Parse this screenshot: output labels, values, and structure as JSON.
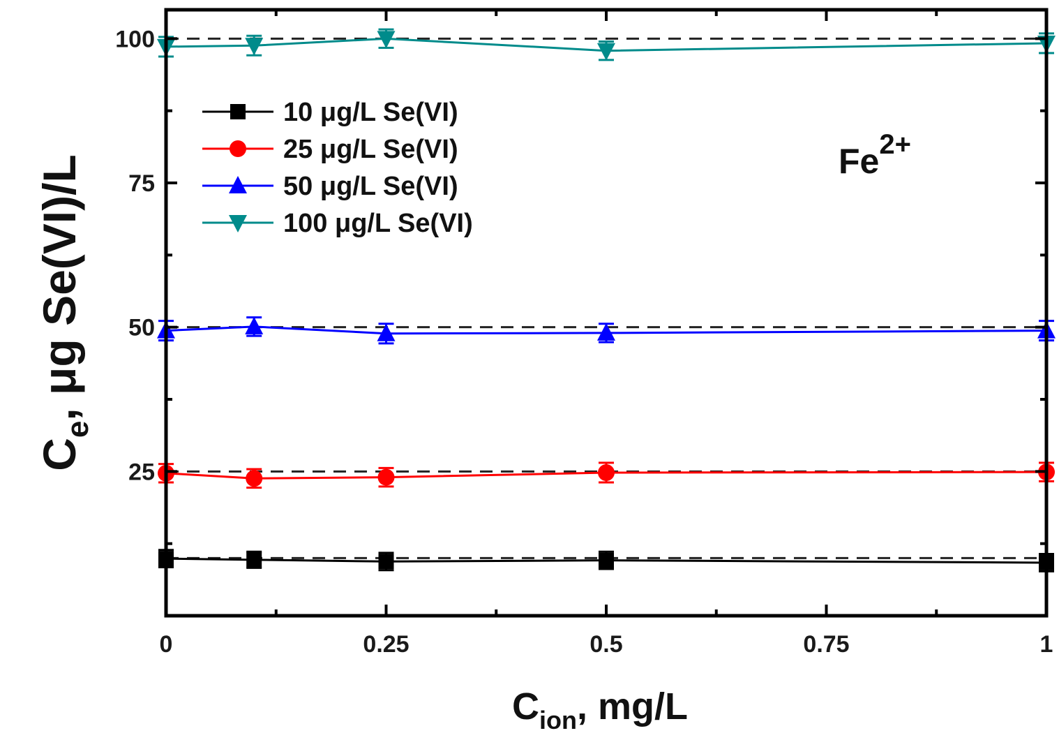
{
  "chart_data": {
    "type": "line",
    "xlabel_main": "C",
    "xlabel_sub": "ion",
    "xlabel_rest": ", mg/L",
    "ylabel_main": "C",
    "ylabel_sub": "e",
    "ylabel_rest": ", μg  Se(VI)/L",
    "annotation_base": "Fe",
    "annotation_sup": "2+",
    "xlim": [
      0,
      1.0
    ],
    "ylim": [
      0,
      105
    ],
    "x_ticks": [
      0,
      0.25,
      0.5,
      0.75,
      1
    ],
    "x_tick_labels": [
      "0",
      "0.25",
      "0.5",
      "0.75",
      "1"
    ],
    "y_ticks": [
      25,
      50,
      75,
      100
    ],
    "y_tick_labels": [
      "25",
      "50",
      "75",
      "100"
    ],
    "legend_position": "top-left",
    "reference_lines": [
      10,
      25,
      50,
      100
    ],
    "x": [
      0,
      0.1,
      0.25,
      0.5,
      1.0
    ],
    "series": [
      {
        "name": "10 μg/L Se(VI)",
        "color": "#000000",
        "marker": "square",
        "values": [
          9.9,
          9.7,
          9.4,
          9.6,
          9.2
        ],
        "errors": [
          1.5,
          1.4,
          1.5,
          1.5,
          1.5
        ]
      },
      {
        "name": "25 μg/L Se(VI)",
        "color": "#ff0000",
        "marker": "circle",
        "values": [
          24.7,
          23.8,
          24.0,
          24.8,
          24.9
        ],
        "errors": [
          1.6,
          1.6,
          1.6,
          1.7,
          1.6
        ]
      },
      {
        "name": "50 μg/L Se(VI)",
        "color": "#0000ff",
        "marker": "triangle-up",
        "values": [
          49.4,
          50.1,
          48.9,
          49.0,
          49.4
        ],
        "errors": [
          1.7,
          1.6,
          1.7,
          1.6,
          1.7
        ]
      },
      {
        "name": "100 μg/L Se(VI)",
        "color": "#008b8b",
        "marker": "triangle-down",
        "values": [
          98.6,
          98.8,
          100.0,
          97.9,
          99.2
        ],
        "errors": [
          1.7,
          1.7,
          1.6,
          1.6,
          1.7
        ]
      }
    ]
  }
}
